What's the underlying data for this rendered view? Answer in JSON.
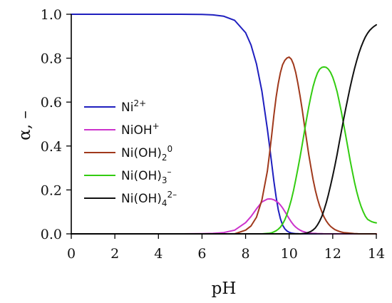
{
  "chart_data": {
    "type": "line",
    "xlabel": "pH",
    "ylabel": "α, –",
    "xlim": [
      0,
      14
    ],
    "ylim": [
      0,
      1
    ],
    "x_ticks": [
      "0",
      "2",
      "4",
      "6",
      "8",
      "10",
      "12",
      "14"
    ],
    "y_ticks": [
      "0.0",
      "0.2",
      "0.4",
      "0.6",
      "0.8",
      "1.0"
    ],
    "grid": false,
    "legend_position": "left",
    "x": [
      0,
      1,
      2,
      3,
      4,
      5,
      6,
      6.5,
      7,
      7.5,
      8,
      8.25,
      8.5,
      8.75,
      9,
      9.1,
      9.2,
      9.3,
      9.4,
      9.5,
      9.6,
      9.7,
      9.8,
      9.9,
      10,
      10.1,
      10.2,
      10.3,
      10.4,
      10.5,
      10.6,
      10.7,
      10.8,
      10.9,
      11,
      11.1,
      11.2,
      11.3,
      11.4,
      11.5,
      11.6,
      11.7,
      11.8,
      11.9,
      12,
      12.1,
      12.2,
      12.3,
      12.4,
      12.5,
      12.6,
      12.7,
      12.8,
      12.9,
      13,
      13.1,
      13.2,
      13.3,
      13.4,
      13.5,
      13.6,
      13.7,
      13.8,
      13.9,
      14
    ],
    "series": [
      {
        "name": "Ni",
        "sup": "2+",
        "sub": "",
        "color": "#1f1fbf",
        "values": [
          1,
          1,
          1,
          1,
          1,
          1,
          0.999,
          0.997,
          0.991,
          0.972,
          0.916,
          0.86,
          0.773,
          0.649,
          0.478,
          0.4,
          0.318,
          0.239,
          0.168,
          0.11,
          0.068,
          0.04,
          0.023,
          0.013,
          0.007,
          0.004,
          0.002,
          0.001,
          0.001,
          0,
          0,
          0,
          0,
          0,
          0,
          0,
          0,
          0,
          0,
          0,
          0,
          0,
          0,
          0,
          0,
          0,
          0,
          0,
          0,
          0,
          0,
          0,
          0,
          0,
          0,
          0,
          0,
          0,
          0,
          0,
          0,
          0,
          0,
          0,
          0
        ]
      },
      {
        "name": "NiOH",
        "sup": "+",
        "sub": "",
        "color": "#cc33cc",
        "values": [
          0,
          0,
          0,
          0,
          0,
          0,
          0.001,
          0.002,
          0.006,
          0.017,
          0.051,
          0.079,
          0.114,
          0.145,
          0.158,
          0.159,
          0.158,
          0.155,
          0.149,
          0.142,
          0.131,
          0.118,
          0.102,
          0.085,
          0.069,
          0.054,
          0.041,
          0.031,
          0.023,
          0.017,
          0.012,
          0.009,
          0.006,
          0.005,
          0.003,
          0.002,
          0.002,
          0.001,
          0.001,
          0.001,
          0,
          0,
          0,
          0,
          0,
          0,
          0,
          0,
          0,
          0,
          0,
          0,
          0,
          0,
          0,
          0,
          0,
          0,
          0,
          0,
          0,
          0,
          0,
          0,
          0
        ]
      },
      {
        "name": "Ni(OH)",
        "sup": "0",
        "sub": "2",
        "color": "#a0391c",
        "values": [
          0,
          0,
          0,
          0,
          0,
          0,
          0,
          0,
          0,
          0,
          0.017,
          0.036,
          0.076,
          0.155,
          0.285,
          0.366,
          0.452,
          0.541,
          0.622,
          0.684,
          0.735,
          0.77,
          0.79,
          0.801,
          0.805,
          0.795,
          0.772,
          0.735,
          0.686,
          0.628,
          0.564,
          0.495,
          0.427,
          0.361,
          0.302,
          0.247,
          0.199,
          0.159,
          0.127,
          0.1,
          0.077,
          0.059,
          0.045,
          0.034,
          0.026,
          0.019,
          0.015,
          0.011,
          0.008,
          0.006,
          0.005,
          0.004,
          0.003,
          0.002,
          0.001,
          0.001,
          0,
          0,
          0,
          0,
          0,
          0,
          0,
          0,
          0
        ]
      },
      {
        "name": "Ni(OH)",
        "sup": "–",
        "sub": "3",
        "color": "#33cc11",
        "values": [
          0,
          0,
          0,
          0,
          0,
          0,
          0,
          0,
          0,
          0,
          0,
          0,
          0,
          0,
          0.002,
          0.003,
          0.005,
          0.009,
          0.014,
          0.021,
          0.031,
          0.045,
          0.064,
          0.089,
          0.12,
          0.156,
          0.197,
          0.246,
          0.296,
          0.35,
          0.408,
          0.466,
          0.524,
          0.578,
          0.628,
          0.671,
          0.706,
          0.733,
          0.75,
          0.758,
          0.76,
          0.758,
          0.75,
          0.735,
          0.713,
          0.683,
          0.647,
          0.602,
          0.553,
          0.5,
          0.445,
          0.389,
          0.334,
          0.283,
          0.235,
          0.192,
          0.156,
          0.125,
          0.1,
          0.08,
          0.066,
          0.06,
          0.055,
          0.052,
          0.05
        ]
      },
      {
        "name": "Ni(OH)",
        "sup": "2–",
        "sub": "4",
        "color": "#111111",
        "values": [
          0,
          0,
          0,
          0,
          0,
          0,
          0,
          0,
          0,
          0,
          0,
          0,
          0,
          0,
          0,
          0,
          0,
          0,
          0,
          0,
          0,
          0,
          0,
          0,
          0,
          0,
          0,
          0,
          0,
          0,
          0.001,
          0.002,
          0.004,
          0.007,
          0.011,
          0.018,
          0.027,
          0.041,
          0.058,
          0.08,
          0.108,
          0.141,
          0.178,
          0.22,
          0.265,
          0.311,
          0.362,
          0.416,
          0.469,
          0.521,
          0.572,
          0.621,
          0.668,
          0.712,
          0.752,
          0.789,
          0.822,
          0.851,
          0.876,
          0.897,
          0.914,
          0.927,
          0.937,
          0.945,
          0.952
        ]
      }
    ]
  }
}
